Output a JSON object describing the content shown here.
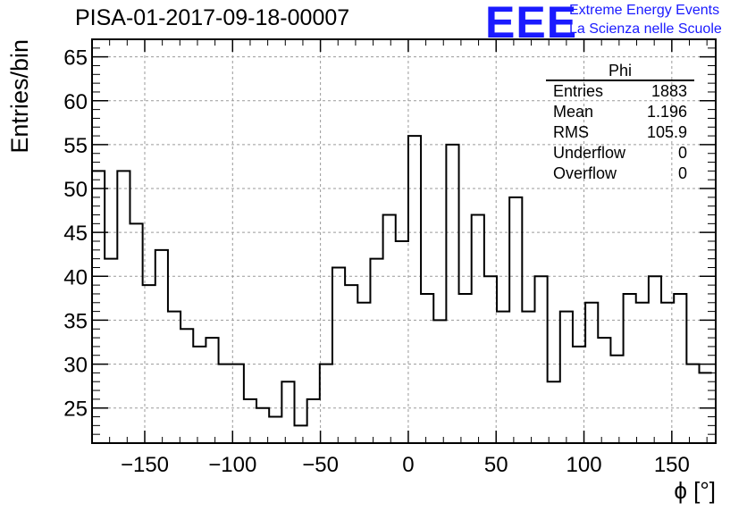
{
  "title": "PISA-01-2017-09-18-00007",
  "logo": {
    "mark": "EEE",
    "line1": "Extreme Energy Events",
    "line2": "La Scienza nelle Scuole"
  },
  "stats_box": {
    "name": "Phi",
    "rows": [
      {
        "label": "Entries",
        "value": "1883"
      },
      {
        "label": "Mean",
        "value": "1.196"
      },
      {
        "label": "RMS",
        "value": "105.9"
      },
      {
        "label": "Underflow",
        "value": "0"
      },
      {
        "label": "Overflow",
        "value": "0"
      }
    ]
  },
  "chart_data": {
    "type": "histogram",
    "xlabel": "ϕ [°]",
    "ylabel": "Entries/bin",
    "xlim": [
      -180,
      175
    ],
    "ylim": [
      21,
      67
    ],
    "xticks": [
      -150,
      -100,
      -50,
      0,
      50,
      100,
      150
    ],
    "yticks": [
      25,
      30,
      35,
      40,
      45,
      50,
      55,
      60,
      65
    ],
    "grid": true,
    "bin_edges_start": -180,
    "bin_width": 7.2,
    "counts": [
      52,
      42,
      52,
      46,
      39,
      43,
      36,
      34,
      32,
      33,
      30,
      30,
      26,
      25,
      24,
      28,
      23,
      26,
      30,
      41,
      39,
      37,
      42,
      47,
      44,
      56,
      38,
      35,
      55,
      38,
      47,
      40,
      36,
      49,
      36,
      40,
      28,
      36,
      32,
      37,
      33,
      31,
      38,
      37,
      40,
      37,
      38,
      30,
      29
    ]
  }
}
